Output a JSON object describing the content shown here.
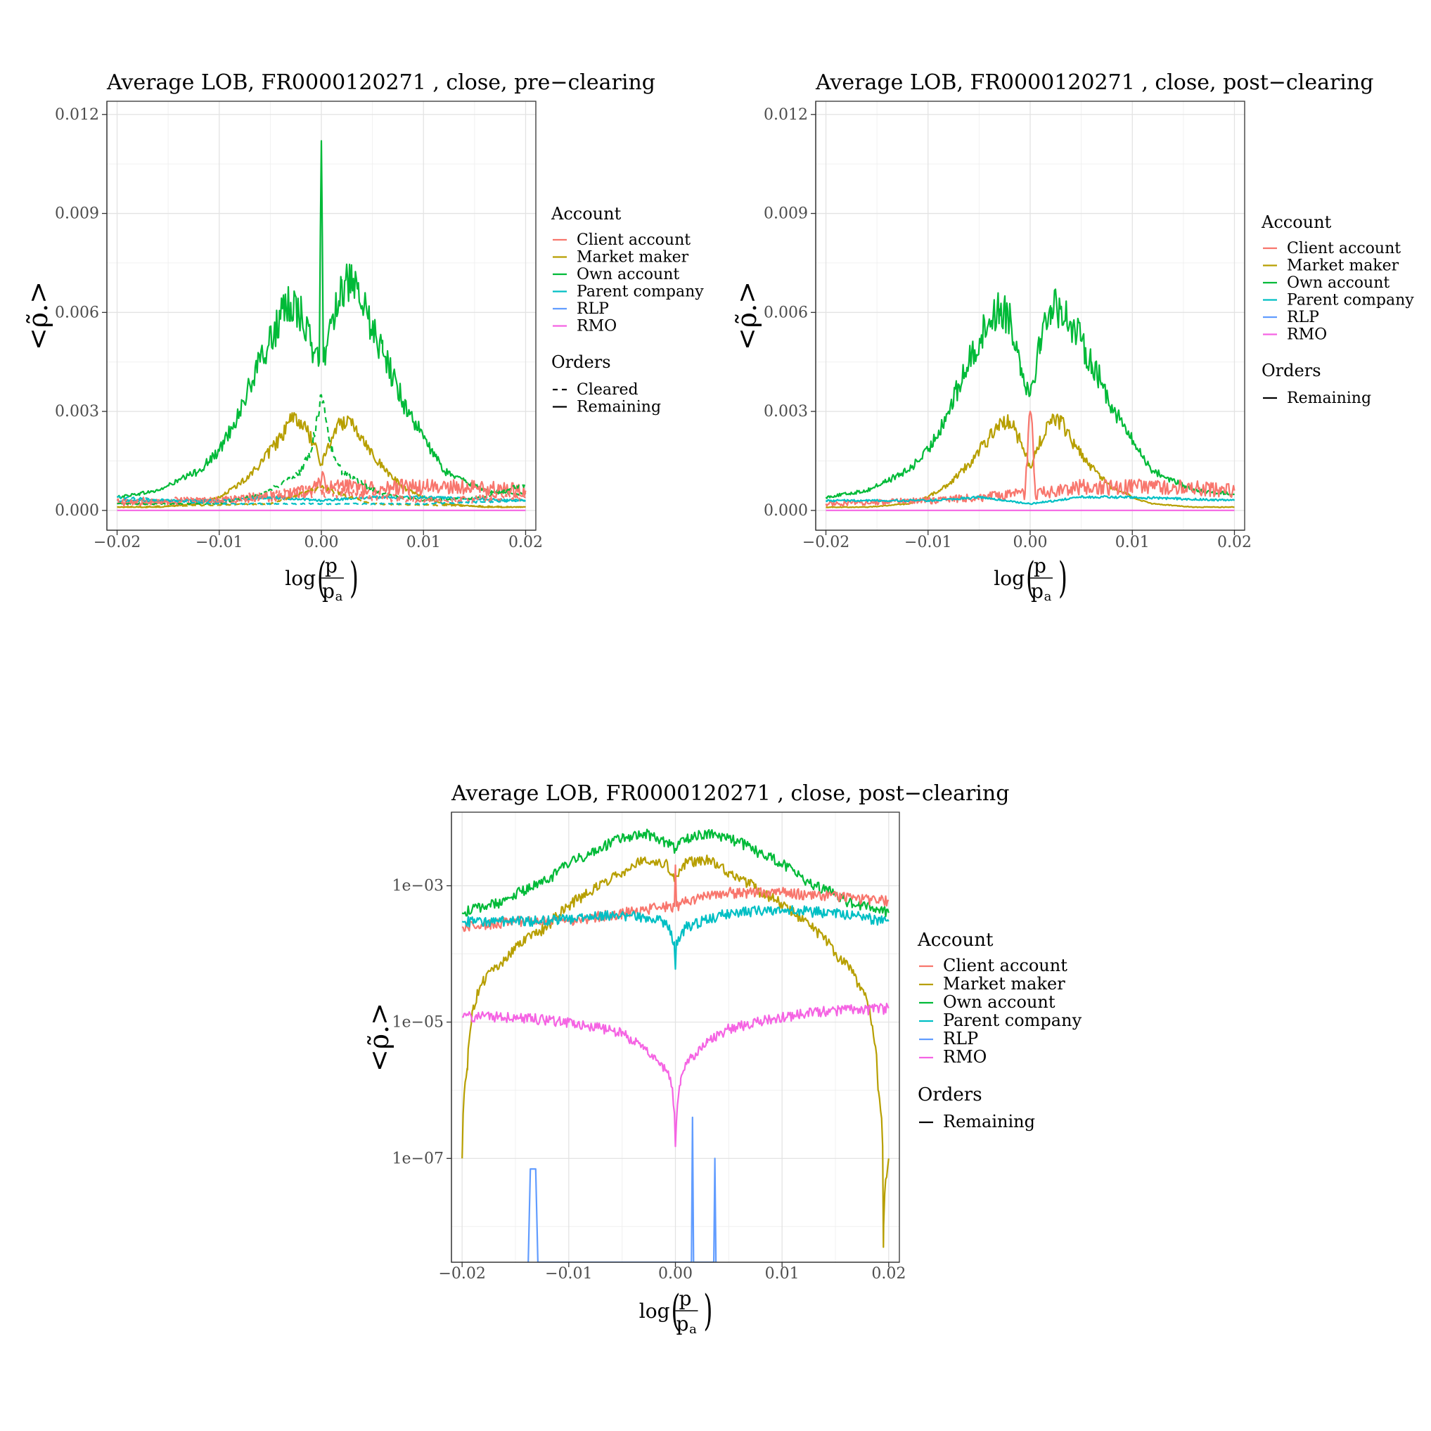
{
  "account_colors": {
    "Client account": "#F8766D",
    "Market maker": "#B79F00",
    "Own account": "#00BA38",
    "Parent company": "#00BFC4",
    "RLP": "#619CFF",
    "RMO": "#F564E3"
  },
  "legend": {
    "account_title": "Account",
    "orders_title": "Orders",
    "accounts": [
      "Client account",
      "Market maker",
      "Own account",
      "Parent company",
      "RLP",
      "RMO"
    ],
    "cleared_label": "Cleared",
    "remaining_label": "Remaining"
  },
  "axis_text": {
    "x_log": "log",
    "x_num": "p",
    "x_den": "p",
    "x_den_sub": "a",
    "y_symbol": "<ρ̃.>"
  },
  "chart_data": [
    {
      "id": "pre",
      "type": "line",
      "title": "Average LOB, FR0000120271 , close, pre−clearing",
      "scale": "linear",
      "xlim": [
        -0.021,
        0.021
      ],
      "ylim": [
        -0.0006,
        0.0124
      ],
      "x_ticks": [
        -0.02,
        -0.01,
        0.0,
        0.01,
        0.02
      ],
      "x_tick_labels": [
        "−0.02",
        "−0.01",
        "0.00",
        "0.01",
        "0.02"
      ],
      "y_ticks": [
        0.0,
        0.003,
        0.006,
        0.009,
        0.012
      ],
      "y_tick_labels": [
        "0.000",
        "0.003",
        "0.006",
        "0.009",
        "0.012"
      ],
      "grid": true,
      "legend_placement": "right",
      "legend_orders": [
        "Cleared",
        "Remaining"
      ],
      "series": [
        {
          "name": "Own account",
          "orders": "Remaining",
          "x": [
            -0.02,
            -0.016,
            -0.012,
            -0.01,
            -0.008,
            -0.006,
            -0.004,
            -0.003,
            -0.002,
            -0.001,
            -0.0002,
            0.0,
            0.0002,
            0.001,
            0.002,
            0.003,
            0.004,
            0.006,
            0.008,
            0.01,
            0.012,
            0.016,
            0.02
          ],
          "y": [
            0.0004,
            0.0006,
            0.0012,
            0.0018,
            0.003,
            0.0045,
            0.0058,
            0.0063,
            0.006,
            0.005,
            0.0045,
            0.0112,
            0.0045,
            0.0058,
            0.0068,
            0.0068,
            0.0062,
            0.0048,
            0.0033,
            0.0022,
            0.0012,
            0.0006,
            0.0005
          ]
        },
        {
          "name": "Market maker",
          "orders": "Remaining",
          "x": [
            -0.02,
            -0.016,
            -0.012,
            -0.01,
            -0.008,
            -0.006,
            -0.004,
            -0.003,
            -0.002,
            -0.001,
            0.0,
            0.001,
            0.002,
            0.003,
            0.004,
            0.006,
            0.008,
            0.01,
            0.012,
            0.016,
            0.02
          ],
          "y": [
            0.0001,
            0.0001,
            0.0002,
            0.0004,
            0.0008,
            0.0014,
            0.0022,
            0.0027,
            0.0027,
            0.0022,
            0.0014,
            0.0022,
            0.0027,
            0.0027,
            0.0022,
            0.0013,
            0.0007,
            0.0004,
            0.0002,
            0.0001,
            0.0001
          ]
        },
        {
          "name": "Client account",
          "orders": "Remaining",
          "x": [
            -0.02,
            -0.01,
            -0.005,
            -0.001,
            0.0,
            0.001,
            0.005,
            0.01,
            0.015,
            0.02
          ],
          "y": [
            0.0002,
            0.0003,
            0.0004,
            0.0006,
            0.0009,
            0.0007,
            0.0007,
            0.0007,
            0.0007,
            0.0006
          ]
        },
        {
          "name": "Parent company",
          "orders": "Remaining",
          "x": [
            -0.02,
            -0.01,
            -0.005,
            0.0,
            0.005,
            0.01,
            0.02
          ],
          "y": [
            0.0003,
            0.0003,
            0.0004,
            0.0003,
            0.0004,
            0.0004,
            0.0003
          ]
        },
        {
          "name": "RMO",
          "orders": "Remaining",
          "x": [
            -0.02,
            0.0,
            0.02
          ],
          "y": [
            0.0,
            0.0,
            0.0
          ]
        },
        {
          "name": "Own account",
          "orders": "Cleared",
          "x": [
            -0.02,
            -0.01,
            -0.006,
            -0.004,
            -0.002,
            -0.001,
            0.0,
            0.001,
            0.002,
            0.004,
            0.006,
            0.01,
            0.016,
            0.02
          ],
          "y": [
            0.0002,
            0.0002,
            0.0005,
            0.0008,
            0.0012,
            0.0018,
            0.0035,
            0.0018,
            0.0012,
            0.0008,
            0.0005,
            0.0003,
            0.0004,
            0.0008
          ]
        },
        {
          "name": "Client account",
          "orders": "Cleared",
          "x": [
            -0.02,
            -0.01,
            0.0,
            0.01,
            0.02
          ],
          "y": [
            0.0003,
            0.0003,
            0.0006,
            0.0003,
            0.0004
          ]
        },
        {
          "name": "Market maker",
          "orders": "Cleared",
          "x": [
            -0.02,
            -0.005,
            0.0,
            0.005,
            0.02
          ],
          "y": [
            0.0001,
            0.0002,
            0.0007,
            0.0002,
            0.0001
          ]
        },
        {
          "name": "Parent company",
          "orders": "Cleared",
          "x": [
            -0.02,
            -0.01,
            0.0,
            0.01,
            0.02
          ],
          "y": [
            0.0004,
            0.0002,
            0.0002,
            0.0002,
            0.0003
          ]
        }
      ]
    },
    {
      "id": "post",
      "type": "line",
      "title": "Average LOB, FR0000120271 , close, post−clearing",
      "scale": "linear",
      "xlim": [
        -0.021,
        0.021
      ],
      "ylim": [
        -0.0006,
        0.0124
      ],
      "x_ticks": [
        -0.02,
        -0.01,
        0.0,
        0.01,
        0.02
      ],
      "x_tick_labels": [
        "−0.02",
        "−0.01",
        "0.00",
        "0.01",
        "0.02"
      ],
      "y_ticks": [
        0.0,
        0.003,
        0.006,
        0.009,
        0.012
      ],
      "y_tick_labels": [
        "0.000",
        "0.003",
        "0.006",
        "0.009",
        "0.012"
      ],
      "grid": true,
      "legend_placement": "right",
      "legend_orders": [
        "Remaining"
      ],
      "series": [
        {
          "name": "Own account",
          "orders": "Remaining",
          "x": [
            -0.02,
            -0.016,
            -0.012,
            -0.01,
            -0.008,
            -0.006,
            -0.004,
            -0.003,
            -0.002,
            -0.001,
            0.0,
            0.001,
            0.002,
            0.003,
            0.004,
            0.006,
            0.008,
            0.01,
            0.012,
            0.016,
            0.02
          ],
          "y": [
            0.0004,
            0.0006,
            0.0012,
            0.0018,
            0.003,
            0.0045,
            0.0058,
            0.0061,
            0.0059,
            0.0045,
            0.0035,
            0.0052,
            0.0062,
            0.0061,
            0.0057,
            0.0045,
            0.0032,
            0.0021,
            0.0012,
            0.0006,
            0.0005
          ]
        },
        {
          "name": "Market maker",
          "orders": "Remaining",
          "x": [
            -0.02,
            -0.016,
            -0.012,
            -0.01,
            -0.008,
            -0.006,
            -0.004,
            -0.003,
            -0.002,
            -0.001,
            0.0,
            0.001,
            0.002,
            0.003,
            0.004,
            0.006,
            0.008,
            0.01,
            0.012,
            0.016,
            0.02
          ],
          "y": [
            0.0001,
            0.0001,
            0.0002,
            0.0004,
            0.0008,
            0.0014,
            0.0022,
            0.0027,
            0.0027,
            0.0021,
            0.0013,
            0.0021,
            0.0027,
            0.0027,
            0.0021,
            0.0013,
            0.0007,
            0.0004,
            0.0002,
            0.0001,
            0.0001
          ]
        },
        {
          "name": "Client account",
          "orders": "Remaining",
          "x": [
            -0.02,
            -0.01,
            -0.005,
            -0.0005,
            0.0,
            0.0005,
            0.005,
            0.01,
            0.015,
            0.02
          ],
          "y": [
            0.0002,
            0.0003,
            0.0004,
            0.0005,
            0.003,
            0.0005,
            0.0007,
            0.0007,
            0.0007,
            0.0006
          ]
        },
        {
          "name": "Parent company",
          "orders": "Remaining",
          "x": [
            -0.02,
            -0.01,
            -0.005,
            0.0,
            0.005,
            0.01,
            0.02
          ],
          "y": [
            0.0003,
            0.0003,
            0.0004,
            0.0002,
            0.0004,
            0.0004,
            0.0003
          ]
        },
        {
          "name": "RMO",
          "orders": "Remaining",
          "x": [
            -0.02,
            0.0,
            0.02
          ],
          "y": [
            0.0,
            0.0,
            0.0
          ]
        }
      ]
    },
    {
      "id": "log",
      "type": "line",
      "title": "Average LOB, FR0000120271 , close, post−clearing",
      "scale": "log10",
      "xlim": [
        -0.021,
        0.021
      ],
      "ylim": [
        3e-09,
        0.012
      ],
      "x_ticks": [
        -0.02,
        -0.01,
        0.0,
        0.01,
        0.02
      ],
      "x_tick_labels": [
        "−0.02",
        "−0.01",
        "0.00",
        "0.01",
        "0.02"
      ],
      "y_ticks": [
        0.001,
        1e-05,
        1e-07
      ],
      "y_tick_labels": [
        "1e−03",
        "1e−05",
        "1e−07"
      ],
      "grid": true,
      "legend_placement": "right",
      "legend_orders": [
        "Remaining"
      ],
      "series": [
        {
          "name": "Own account",
          "orders": "Remaining",
          "x": [
            -0.02,
            -0.016,
            -0.012,
            -0.008,
            -0.005,
            -0.003,
            -0.001,
            0.0,
            0.001,
            0.003,
            0.005,
            0.008,
            0.012,
            0.016,
            0.02
          ],
          "y": [
            0.0004,
            0.0006,
            0.0012,
            0.003,
            0.005,
            0.006,
            0.0045,
            0.0035,
            0.005,
            0.006,
            0.005,
            0.003,
            0.0012,
            0.0006,
            0.0004
          ]
        },
        {
          "name": "Market maker",
          "orders": "Remaining",
          "x": [
            -0.02,
            -0.0195,
            -0.019,
            -0.018,
            -0.016,
            -0.012,
            -0.008,
            -0.005,
            -0.003,
            -0.001,
            0.0,
            0.001,
            0.003,
            0.005,
            0.008,
            0.012,
            0.015,
            0.017,
            0.018,
            0.0185,
            0.019,
            0.0195,
            0.02
          ],
          "y": [
            1e-07,
            2e-06,
            1.5e-05,
            4e-05,
            8e-05,
            0.00025,
            0.0008,
            0.0016,
            0.0025,
            0.0022,
            0.0013,
            0.0022,
            0.0025,
            0.0016,
            0.0008,
            0.0003,
            0.0001,
            4e-05,
            2e-05,
            8e-06,
            1e-06,
            5e-09,
            1e-07
          ]
        },
        {
          "name": "Client account",
          "orders": "Remaining",
          "x": [
            -0.02,
            -0.015,
            -0.01,
            -0.005,
            -0.001,
            -0.0001,
            0.0,
            0.0001,
            0.001,
            0.005,
            0.01,
            0.015,
            0.02
          ],
          "y": [
            0.00025,
            0.0003,
            0.0003,
            0.0004,
            0.0005,
            0.0005,
            0.002,
            0.0005,
            0.0006,
            0.0008,
            0.0008,
            0.0007,
            0.0006
          ]
        },
        {
          "name": "Parent company",
          "orders": "Remaining",
          "x": [
            -0.02,
            -0.015,
            -0.01,
            -0.005,
            -0.001,
            -0.0001,
            0.0,
            0.0001,
            0.001,
            0.005,
            0.01,
            0.015,
            0.02
          ],
          "y": [
            0.0003,
            0.0003,
            0.00033,
            0.00038,
            0.0003,
            0.00015,
            6e-05,
            0.00015,
            0.00025,
            0.0004,
            0.00045,
            0.0004,
            0.0003
          ]
        },
        {
          "name": "RMO",
          "orders": "Remaining",
          "x": [
            -0.02,
            -0.015,
            -0.01,
            -0.005,
            -0.003,
            -0.0015,
            -0.0005,
            0.0,
            0.0005,
            0.0015,
            0.003,
            0.005,
            0.01,
            0.015,
            0.02
          ],
          "y": [
            1.2e-05,
            1.2e-05,
            1e-05,
            7e-06,
            4e-06,
            2.5e-06,
            1.5e-06,
            1.5e-07,
            1.5e-06,
            3e-06,
            5e-06,
            8e-06,
            1.2e-05,
            1.5e-05,
            1.6e-05
          ]
        },
        {
          "name": "RLP",
          "orders": "Remaining",
          "x": [
            -0.0138,
            -0.0136,
            -0.0135,
            -0.0132,
            -0.0131,
            -0.0129,
            0.0015,
            0.0016,
            0.0017,
            0.0036,
            0.0037,
            0.0038
          ],
          "y": [
            3e-09,
            7e-08,
            7e-08,
            7e-08,
            7e-08,
            3e-09,
            3e-09,
            4e-07,
            3e-09,
            3e-09,
            1e-07,
            3e-09
          ]
        }
      ]
    }
  ]
}
